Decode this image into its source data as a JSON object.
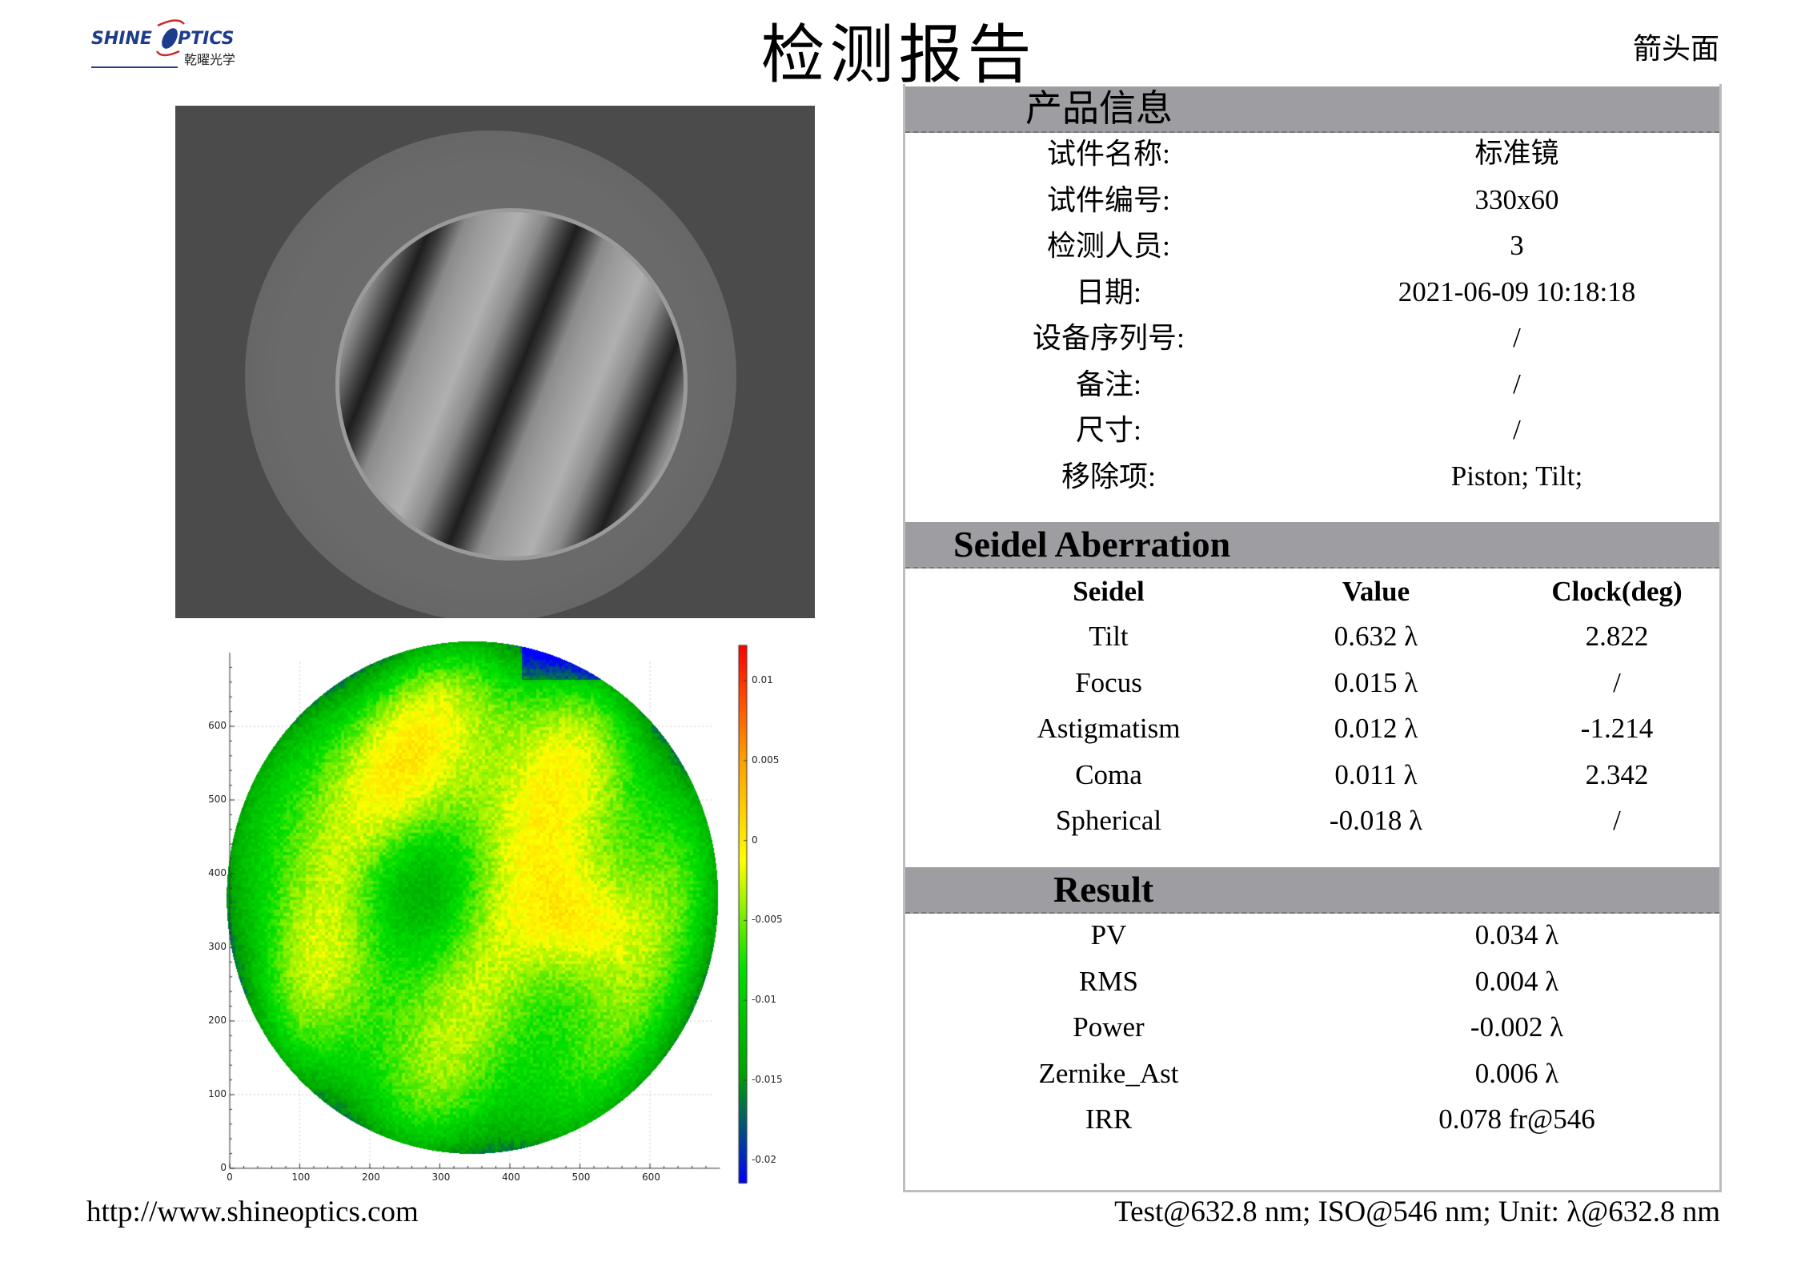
{
  "header": {
    "logo_text": "SHINE OPTICS",
    "logo_sub": "乾曜光学",
    "title": "检测报告",
    "face": "箭头面"
  },
  "product_info": {
    "title": "产品信息",
    "rows": [
      {
        "label": "试件名称:",
        "value": "标准镜"
      },
      {
        "label": "试件编号:",
        "value": "330x60"
      },
      {
        "label": "检测人员:",
        "value": "3"
      },
      {
        "label": "日期:",
        "value": "2021-06-09 10:18:18"
      },
      {
        "label": "设备序列号:",
        "value": "/"
      },
      {
        "label": "备注:",
        "value": "/"
      },
      {
        "label": "尺寸:",
        "value": "/"
      },
      {
        "label": "移除项:",
        "value": "Piston; Tilt;"
      }
    ]
  },
  "seidel": {
    "title": "Seidel Aberration",
    "headers": [
      "Seidel",
      "Value",
      "Clock(deg)"
    ],
    "rows": [
      [
        "Tilt",
        "0.632 λ",
        "2.822"
      ],
      [
        "Focus",
        "0.015 λ",
        "/"
      ],
      [
        "Astigmatism",
        "0.012 λ",
        "-1.214"
      ],
      [
        "Coma",
        "0.011 λ",
        "2.342"
      ],
      [
        "Spherical",
        "-0.018 λ",
        "/"
      ]
    ]
  },
  "result": {
    "title": "Result",
    "rows": [
      {
        "label": "PV",
        "value": "0.034 λ"
      },
      {
        "label": "RMS",
        "value": "0.004 λ"
      },
      {
        "label": "Power",
        "value": "-0.002 λ"
      },
      {
        "label": "Zernike_Ast",
        "value": "0.006 λ"
      },
      {
        "label": "IRR",
        "value": "0.078 fr@546"
      }
    ]
  },
  "surface_map": {
    "x_ticks": [
      "0",
      "100",
      "200",
      "300",
      "400",
      "500",
      "600"
    ],
    "y_ticks": [
      "0",
      "100",
      "200",
      "300",
      "400",
      "500",
      "600"
    ],
    "colorbar_ticks": [
      "0.01",
      "0.005",
      "0",
      "-0.005",
      "-0.01",
      "-0.015",
      "-0.02"
    ],
    "colorbar_range": [
      -0.0214,
      0.0122
    ],
    "colormap": [
      "#0000ff",
      "#00a000",
      "#00e000",
      "#ffff00",
      "#ff9900",
      "#ff0000"
    ]
  },
  "footer": {
    "url": "http://www.shineoptics.com",
    "note": "Test@632.8 nm; ISO@546 nm; Unit: λ@632.8 nm"
  }
}
